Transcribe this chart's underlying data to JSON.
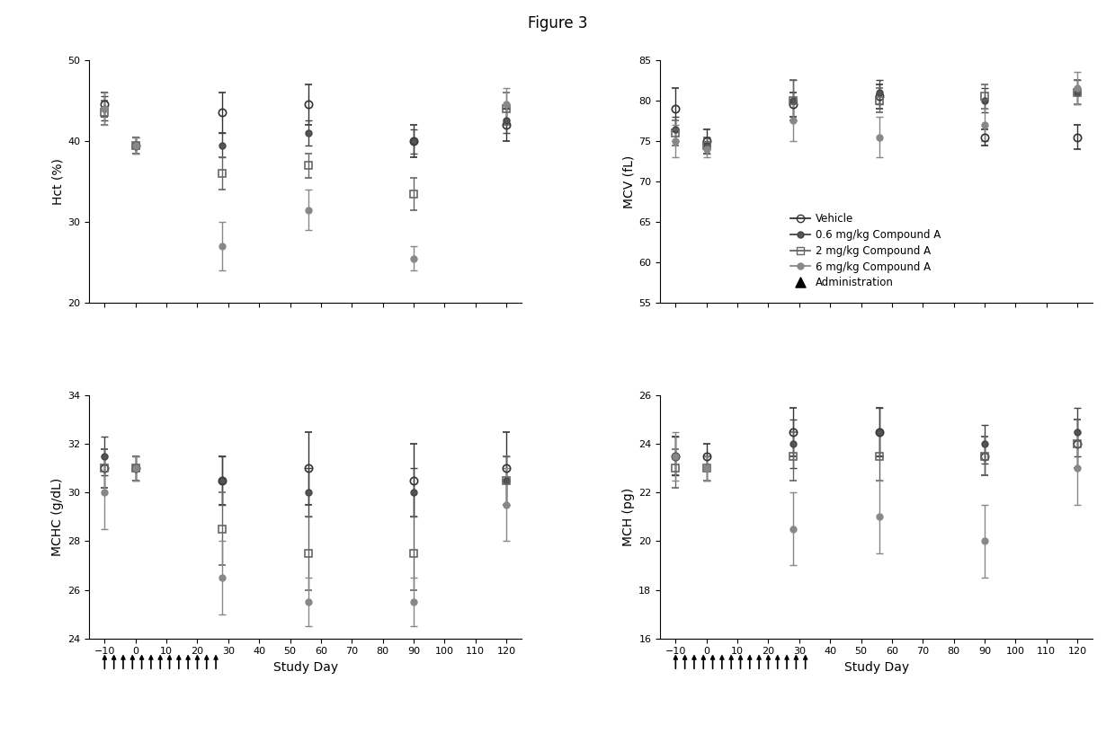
{
  "title": "Figure 3",
  "x_days": [
    -10,
    0,
    28,
    56,
    90,
    120
  ],
  "x_ticks": [
    -10,
    0,
    10,
    20,
    30,
    40,
    50,
    60,
    70,
    80,
    90,
    100,
    110,
    120
  ],
  "x_lim": [
    -15,
    125
  ],
  "hct": {
    "ylabel": "Hct (%)",
    "ylim": [
      20,
      50
    ],
    "yticks": [
      20,
      30,
      40,
      50
    ],
    "vehicle": {
      "y": [
        44.5,
        39.5,
        43.5,
        44.5,
        40.0,
        42.0
      ],
      "yerr": [
        1.5,
        1.0,
        2.5,
        2.5,
        2.0,
        2.0
      ]
    },
    "dose06": {
      "y": [
        44.0,
        39.5,
        39.5,
        41.0,
        40.0,
        42.5
      ],
      "yerr": [
        1.5,
        1.0,
        1.5,
        1.5,
        1.5,
        1.5
      ]
    },
    "dose2": {
      "y": [
        43.5,
        39.5,
        36.0,
        37.0,
        33.5,
        44.0
      ],
      "yerr": [
        1.5,
        1.0,
        2.0,
        1.5,
        2.0,
        2.0
      ]
    },
    "dose6": {
      "y": [
        44.0,
        39.5,
        27.0,
        31.5,
        25.5,
        44.5
      ],
      "yerr": [
        2.0,
        1.0,
        3.0,
        2.5,
        1.5,
        2.0
      ]
    }
  },
  "mcv": {
    "ylabel": "MCV (fL)",
    "ylim": [
      55,
      85
    ],
    "yticks": [
      55,
      60,
      65,
      70,
      75,
      80,
      85
    ],
    "vehicle": {
      "y": [
        79.0,
        75.0,
        79.5,
        80.5,
        75.5,
        75.5
      ],
      "yerr": [
        2.5,
        1.5,
        1.5,
        1.5,
        1.0,
        1.5
      ]
    },
    "dose06": {
      "y": [
        76.5,
        74.5,
        80.0,
        81.0,
        80.0,
        81.0
      ],
      "yerr": [
        1.5,
        1.0,
        2.5,
        1.5,
        1.5,
        1.5
      ]
    },
    "dose2": {
      "y": [
        76.0,
        74.5,
        80.0,
        80.0,
        80.5,
        81.0
      ],
      "yerr": [
        1.5,
        1.0,
        2.5,
        1.5,
        1.5,
        1.5
      ]
    },
    "dose6": {
      "y": [
        75.0,
        74.0,
        77.5,
        75.5,
        77.0,
        81.5
      ],
      "yerr": [
        2.0,
        1.0,
        2.5,
        2.5,
        2.0,
        2.0
      ]
    }
  },
  "mchc": {
    "ylabel": "MCHC (g/dL)",
    "ylim": [
      24,
      34
    ],
    "yticks": [
      24,
      26,
      28,
      30,
      32,
      34
    ],
    "vehicle": {
      "y": [
        31.0,
        31.0,
        30.5,
        31.0,
        30.5,
        31.0
      ],
      "yerr": [
        0.8,
        0.5,
        1.0,
        1.5,
        1.5,
        1.5
      ]
    },
    "dose06": {
      "y": [
        31.5,
        31.0,
        30.5,
        30.0,
        30.0,
        30.5
      ],
      "yerr": [
        0.8,
        0.5,
        1.0,
        1.0,
        1.0,
        1.0
      ]
    },
    "dose2": {
      "y": [
        31.0,
        31.0,
        28.5,
        27.5,
        27.5,
        30.5
      ],
      "yerr": [
        0.8,
        0.5,
        1.5,
        1.5,
        1.5,
        1.0
      ]
    },
    "dose6": {
      "y": [
        30.0,
        31.0,
        26.5,
        25.5,
        25.5,
        29.5
      ],
      "yerr": [
        1.5,
        0.5,
        1.5,
        1.0,
        1.0,
        1.5
      ]
    }
  },
  "mch": {
    "ylabel": "MCH (pg)",
    "ylim": [
      16,
      26
    ],
    "yticks": [
      16,
      18,
      20,
      22,
      24,
      26
    ],
    "vehicle": {
      "y": [
        23.5,
        23.5,
        24.5,
        24.5,
        23.5,
        24.0
      ],
      "yerr": [
        0.8,
        0.5,
        1.0,
        1.0,
        0.8,
        1.0
      ]
    },
    "dose06": {
      "y": [
        23.5,
        23.0,
        24.0,
        24.5,
        24.0,
        24.5
      ],
      "yerr": [
        0.8,
        0.5,
        1.0,
        1.0,
        0.8,
        1.0
      ]
    },
    "dose2": {
      "y": [
        23.0,
        23.0,
        23.5,
        23.5,
        23.5,
        24.0
      ],
      "yerr": [
        0.8,
        0.5,
        1.0,
        1.0,
        0.8,
        1.0
      ]
    },
    "dose6": {
      "y": [
        23.5,
        23.0,
        20.5,
        21.0,
        20.0,
        23.0
      ],
      "yerr": [
        1.0,
        0.5,
        1.5,
        1.5,
        1.5,
        1.5
      ]
    }
  },
  "legend_labels": [
    "Vehicle",
    "0.6 mg/kg Compound A",
    "2 mg/kg Compound A",
    "6 mg/kg Compound A",
    "Administration"
  ],
  "arrow_days_left": [
    -10,
    -7,
    -4,
    -1,
    2,
    5,
    8,
    11,
    14,
    17,
    20,
    23,
    26
  ],
  "arrow_days_right": [
    -10,
    -7,
    -4,
    -1,
    2,
    5,
    8,
    11,
    14,
    17,
    20,
    23,
    26,
    29,
    32
  ],
  "background_color": "#ffffff"
}
